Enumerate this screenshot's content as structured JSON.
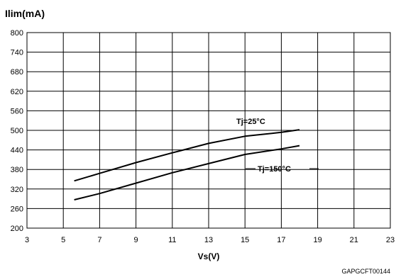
{
  "chart_data": {
    "type": "line",
    "ylabel": "Ilim(mA)",
    "xlabel": "Vs(V)",
    "code": "GAPGCFT00144",
    "xlim": [
      3,
      23
    ],
    "ylim": [
      200,
      800
    ],
    "xticks": [
      3,
      5,
      7,
      9,
      11,
      13,
      15,
      17,
      19,
      21,
      23
    ],
    "yticks": [
      200,
      260,
      320,
      380,
      440,
      500,
      560,
      620,
      680,
      740,
      800
    ],
    "grid": true,
    "series": [
      {
        "name": "Tj=25°C",
        "x": [
          5.6,
          7.0,
          9.0,
          11.0,
          13.0,
          15.0,
          17.0,
          18.0
        ],
        "y": [
          345,
          368,
          401,
          431,
          460,
          482,
          494,
          502
        ]
      },
      {
        "name": "Tj=150°C",
        "x": [
          5.6,
          7.0,
          9.0,
          11.0,
          13.0,
          15.0,
          17.0,
          18.0
        ],
        "y": [
          287,
          306,
          338,
          370,
          398,
          426,
          443,
          453
        ]
      }
    ],
    "annotations": [
      {
        "text": "Tj=25°C",
        "series": 0
      },
      {
        "text": "Tj=150°C",
        "series": 1
      }
    ]
  }
}
